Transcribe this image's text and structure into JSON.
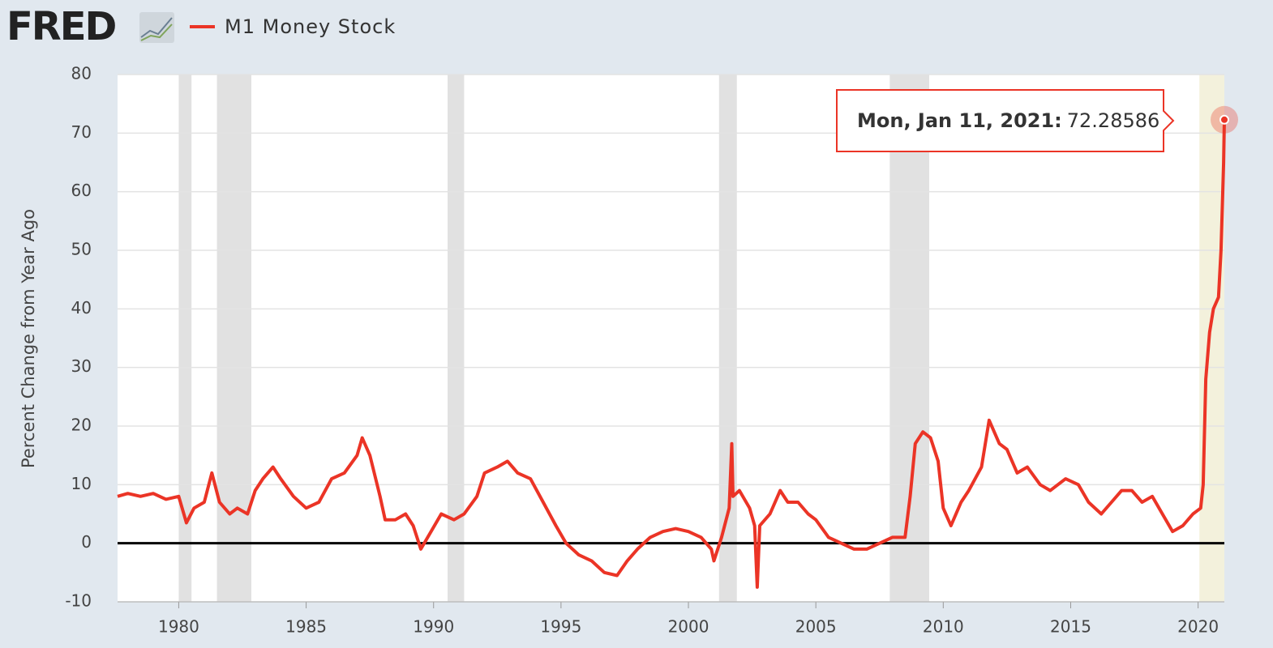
{
  "chart_data": {
    "type": "line",
    "logo": "FRED",
    "ylabel": "Percent Change from Year Ago",
    "xlim": [
      1977.6,
      2021.03
    ],
    "ylim": [
      -10,
      80
    ],
    "yticks": [
      -10,
      0,
      10,
      20,
      30,
      40,
      50,
      60,
      70,
      80
    ],
    "xticks": [
      1980,
      1985,
      1990,
      1995,
      2000,
      2005,
      2010,
      2015,
      2020
    ],
    "grid": true,
    "recessions": [
      [
        1980.0,
        1980.5
      ],
      [
        1981.5,
        1982.85
      ],
      [
        1990.55,
        1991.2
      ],
      [
        2001.2,
        2001.9
      ],
      [
        2007.9,
        2009.45
      ]
    ],
    "recession_color": "#e1e1e1",
    "highlight": [
      2020.05,
      2021.03
    ],
    "highlight_color": "#f3f1dc",
    "tooltip_date": "Mon, Jan 11, 2021:",
    "series": [
      {
        "name": "M1 Money Stock",
        "color": "#eb3426",
        "x": [
          1977.6,
          1978,
          1978.5,
          1979,
          1979.5,
          1980.0,
          1980.3,
          1980.6,
          1981.0,
          1981.3,
          1981.6,
          1982.0,
          1982.3,
          1982.7,
          1983.0,
          1983.3,
          1983.7,
          1984.0,
          1984.5,
          1985.0,
          1985.5,
          1986.0,
          1986.5,
          1987.0,
          1987.2,
          1987.5,
          1987.9,
          1988.1,
          1988.5,
          1988.9,
          1989.2,
          1989.5,
          1989.9,
          1990.3,
          1990.8,
          1991.2,
          1991.7,
          1992.0,
          1992.5,
          1992.9,
          1993.3,
          1993.8,
          1994.3,
          1994.8,
          1995.2,
          1995.7,
          1996.2,
          1996.7,
          1997.2,
          1997.6,
          1998.0,
          1998.5,
          1999.0,
          1999.5,
          2000.0,
          2000.5,
          2000.9,
          2001.0,
          2001.3,
          2001.6,
          2001.7,
          2001.75,
          2002.0,
          2002.4,
          2002.6,
          2002.7,
          2002.8,
          2003.2,
          2003.6,
          2003.9,
          2004.3,
          2004.7,
          2005.0,
          2005.5,
          2006.0,
          2006.5,
          2007.0,
          2007.5,
          2008.0,
          2008.5,
          2008.7,
          2008.9,
          2009.2,
          2009.5,
          2009.8,
          2010.0,
          2010.3,
          2010.7,
          2011.0,
          2011.5,
          2011.8,
          2012.2,
          2012.5,
          2012.9,
          2013.3,
          2013.8,
          2014.2,
          2014.8,
          2015.3,
          2015.7,
          2016.2,
          2016.6,
          2017.0,
          2017.4,
          2017.8,
          2018.2,
          2018.6,
          2019.0,
          2019.4,
          2019.8,
          2020.1,
          2020.2,
          2020.3,
          2020.45,
          2020.6,
          2020.8,
          2020.9,
          2021.0,
          2021.03
        ],
        "values": [
          8,
          8.5,
          8,
          8.5,
          7.5,
          8,
          3.5,
          6,
          7,
          12,
          7,
          5,
          6,
          5,
          9,
          11,
          13,
          11,
          8,
          6,
          7,
          11,
          12,
          15,
          18,
          15,
          8,
          4,
          4,
          5,
          3,
          -1,
          2,
          5,
          4,
          5,
          8,
          12,
          13,
          14,
          12,
          11,
          7,
          3,
          0,
          -2,
          -3,
          -5,
          -5.5,
          -3,
          -1,
          1,
          2,
          2.5,
          2,
          1,
          -1,
          -3,
          1,
          6,
          17,
          8,
          9,
          6,
          3,
          -7.5,
          3,
          5,
          9,
          7,
          7,
          5,
          4,
          1,
          0,
          -1,
          -1,
          0,
          1,
          1,
          8,
          17,
          19,
          18,
          14,
          6,
          3,
          7,
          9,
          13,
          21,
          17,
          16,
          12,
          13,
          10,
          9,
          11,
          10,
          7,
          5,
          7,
          9,
          9,
          7,
          8,
          5,
          2,
          3,
          5,
          6,
          10,
          28,
          36,
          40,
          42,
          50,
          65,
          72.28586
        ]
      }
    ]
  }
}
